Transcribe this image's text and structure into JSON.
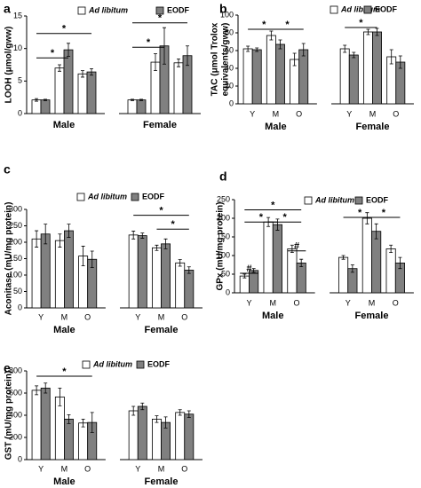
{
  "chart_data": [
    {
      "type": "bar",
      "panel_label": "a",
      "ylabel": "LOOH (μmol/gww)",
      "ylim": [
        0,
        15
      ],
      "yticks": [
        0,
        5,
        10,
        15
      ],
      "groups": [
        "Male",
        "Female"
      ],
      "series": [
        {
          "name": "Ad libitum",
          "color": "#ffffff",
          "values": [
            2.1,
            7.0,
            6.1,
            2.1,
            7.9,
            7.8
          ],
          "errors": [
            0.2,
            0.5,
            0.5,
            0.1,
            1.3,
            0.6
          ]
        },
        {
          "name": "EODF",
          "color": "#808080",
          "values": [
            2.1,
            9.8,
            6.4,
            2.1,
            10.4,
            8.9
          ],
          "errors": [
            0.1,
            1.0,
            0.5,
            0.1,
            2.8,
            1.5
          ]
        }
      ],
      "annotations": [
        "*",
        "*",
        "*",
        "*"
      ]
    },
    {
      "type": "bar",
      "panel_label": "b",
      "ylabel": [
        "TAC (μmol Trolox",
        "equivalents/gww)"
      ],
      "ylim": [
        0,
        100
      ],
      "yticks": [
        0,
        20,
        40,
        60,
        80,
        100
      ],
      "categories": [
        "Y",
        "M",
        "O",
        "Y",
        "M",
        "O"
      ],
      "groups": [
        "Male",
        "Female"
      ],
      "series": [
        {
          "name": "Ad libitum",
          "color": "#ffffff",
          "values": [
            62,
            77,
            50,
            62,
            81,
            53
          ],
          "errors": [
            3,
            5,
            7,
            4,
            3,
            8
          ]
        },
        {
          "name": "EODF",
          "color": "#808080",
          "values": [
            61,
            67,
            61,
            55,
            81,
            47
          ],
          "errors": [
            2,
            5,
            7,
            3,
            4,
            7
          ]
        }
      ],
      "annotations": [
        "*",
        "*",
        "*"
      ]
    },
    {
      "type": "bar",
      "panel_label": "c",
      "ylabel": "Aconitase (mU/mg protein)",
      "ylim": [
        0,
        300
      ],
      "yticks": [
        0,
        50,
        100,
        150,
        200,
        250,
        300
      ],
      "categories": [
        "Y",
        "M",
        "O",
        "Y",
        "M",
        "O"
      ],
      "groups": [
        "Male",
        "Female"
      ],
      "series": [
        {
          "name": "Ad libitum",
          "color": "#ffffff",
          "values": [
            210,
            205,
            158,
            222,
            183,
            137
          ],
          "errors": [
            25,
            20,
            30,
            12,
            8,
            10
          ]
        },
        {
          "name": "EODF",
          "color": "#808080",
          "values": [
            225,
            235,
            148,
            220,
            195,
            115
          ],
          "errors": [
            30,
            20,
            25,
            8,
            15,
            10
          ]
        }
      ],
      "annotations": [
        "*",
        "*"
      ]
    },
    {
      "type": "bar",
      "panel_label": "d",
      "ylabel": "GPx (mU/mg protein)",
      "ylim": [
        0,
        250
      ],
      "yticks": [
        0,
        50,
        100,
        150,
        200,
        250
      ],
      "categories": [
        "Y",
        "M",
        "O",
        "Y",
        "M",
        "O"
      ],
      "groups": [
        "Male",
        "Female"
      ],
      "series": [
        {
          "name": "Ad libitum",
          "color": "#ffffff",
          "values": [
            45,
            190,
            118,
            95,
            200,
            118
          ],
          "errors": [
            5,
            12,
            10,
            5,
            15,
            10
          ]
        },
        {
          "name": "EODF",
          "color": "#808080",
          "values": [
            60,
            183,
            80,
            65,
            165,
            80
          ],
          "errors": [
            5,
            15,
            10,
            10,
            20,
            15
          ]
        }
      ],
      "annotations": [
        "#",
        "*",
        "*",
        "*",
        "#",
        "*",
        "*"
      ]
    },
    {
      "type": "bar",
      "panel_label": "e",
      "ylabel": "GST (mU/mg protein)",
      "ylim": [
        0,
        800
      ],
      "yticks": [
        0,
        200,
        400,
        600,
        800
      ],
      "categories": [
        "Y",
        "M",
        "O",
        "Y",
        "M",
        "O"
      ],
      "groups": [
        "Male",
        "Female"
      ],
      "series": [
        {
          "name": "Ad libitum",
          "color": "#ffffff",
          "values": [
            625,
            565,
            330,
            440,
            365,
            425
          ],
          "errors": [
            40,
            80,
            35,
            40,
            30,
            25
          ]
        },
        {
          "name": "EODF",
          "color": "#808080",
          "values": [
            645,
            365,
            335,
            480,
            335,
            410
          ],
          "errors": [
            45,
            40,
            90,
            30,
            50,
            30
          ]
        }
      ],
      "annotations": [
        "*"
      ]
    }
  ]
}
